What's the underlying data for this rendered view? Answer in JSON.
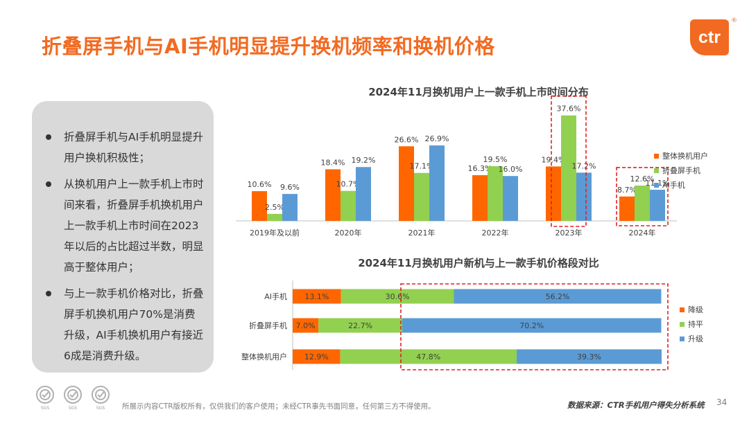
{
  "title": "折叠屏手机与AI手机明显提升换机频率和换机价格",
  "logo": {
    "text": "ctr",
    "reg": "®"
  },
  "bullets": [
    "折叠屏手机与AI手机明显提升用户换机积极性；",
    "从换机用户上一款手机上市时间来看，折叠屏手机换机用户上一款手机上市时间在2023年以后的占比超过半数，明显高于整体用户；",
    "与上一款手机价格对比，折叠屏手机换机用户70%是消费升级，AI手机换机用户有接近6成是消费升级。"
  ],
  "colors": {
    "accent": "#f26a21",
    "green": "#92d050",
    "blue": "#5b9bd5",
    "orange": "#ff6600",
    "highlight": "#e02020"
  },
  "chart_data": [
    {
      "type": "bar",
      "title": "2024年11月换机用户上一款手机上市时间分布",
      "categories": [
        "2019年及以前",
        "2020年",
        "2021年",
        "2022年",
        "2023年",
        "2024年"
      ],
      "series": [
        {
          "name": "整体换机用户",
          "color": "#ff6600",
          "values": [
            10.6,
            18.4,
            26.6,
            16.3,
            19.4,
            8.7
          ]
        },
        {
          "name": "折叠屏手机",
          "color": "#92d050",
          "values": [
            2.5,
            10.7,
            17.1,
            19.5,
            37.6,
            12.6
          ]
        },
        {
          "name": "AI手机",
          "color": "#5b9bd5",
          "values": [
            9.6,
            19.2,
            26.9,
            16.0,
            17.2,
            11.1
          ]
        }
      ],
      "value_suffix": "%",
      "legend": "right",
      "highlight": [
        "2023年 折叠屏手机",
        "2024年"
      ]
    },
    {
      "type": "bar",
      "orientation": "horizontal-stacked-100",
      "title": "2024年11月换机用户新机与上一款手机价格段对比",
      "categories": [
        "AI手机",
        "折叠屏手机",
        "整体换机用户"
      ],
      "series": [
        {
          "name": "降级",
          "color": "#ff6600",
          "values": [
            13.1,
            7.0,
            12.9
          ]
        },
        {
          "name": "持平",
          "color": "#92d050",
          "values": [
            30.6,
            22.7,
            47.8
          ]
        },
        {
          "name": "升级",
          "color": "#5b9bd5",
          "values": [
            56.2,
            70.2,
            39.3
          ]
        }
      ],
      "value_suffix": "%",
      "legend": "right"
    }
  ],
  "footer": {
    "disclaimer": "所展示内容CTR版权所有，仅供我们的客户使用；未经CTR事先书面同意，任何第三方不得使用。",
    "source": "数据来源：CTR手机用户得失分析系统",
    "page": "34",
    "cert_label": "SGS"
  }
}
